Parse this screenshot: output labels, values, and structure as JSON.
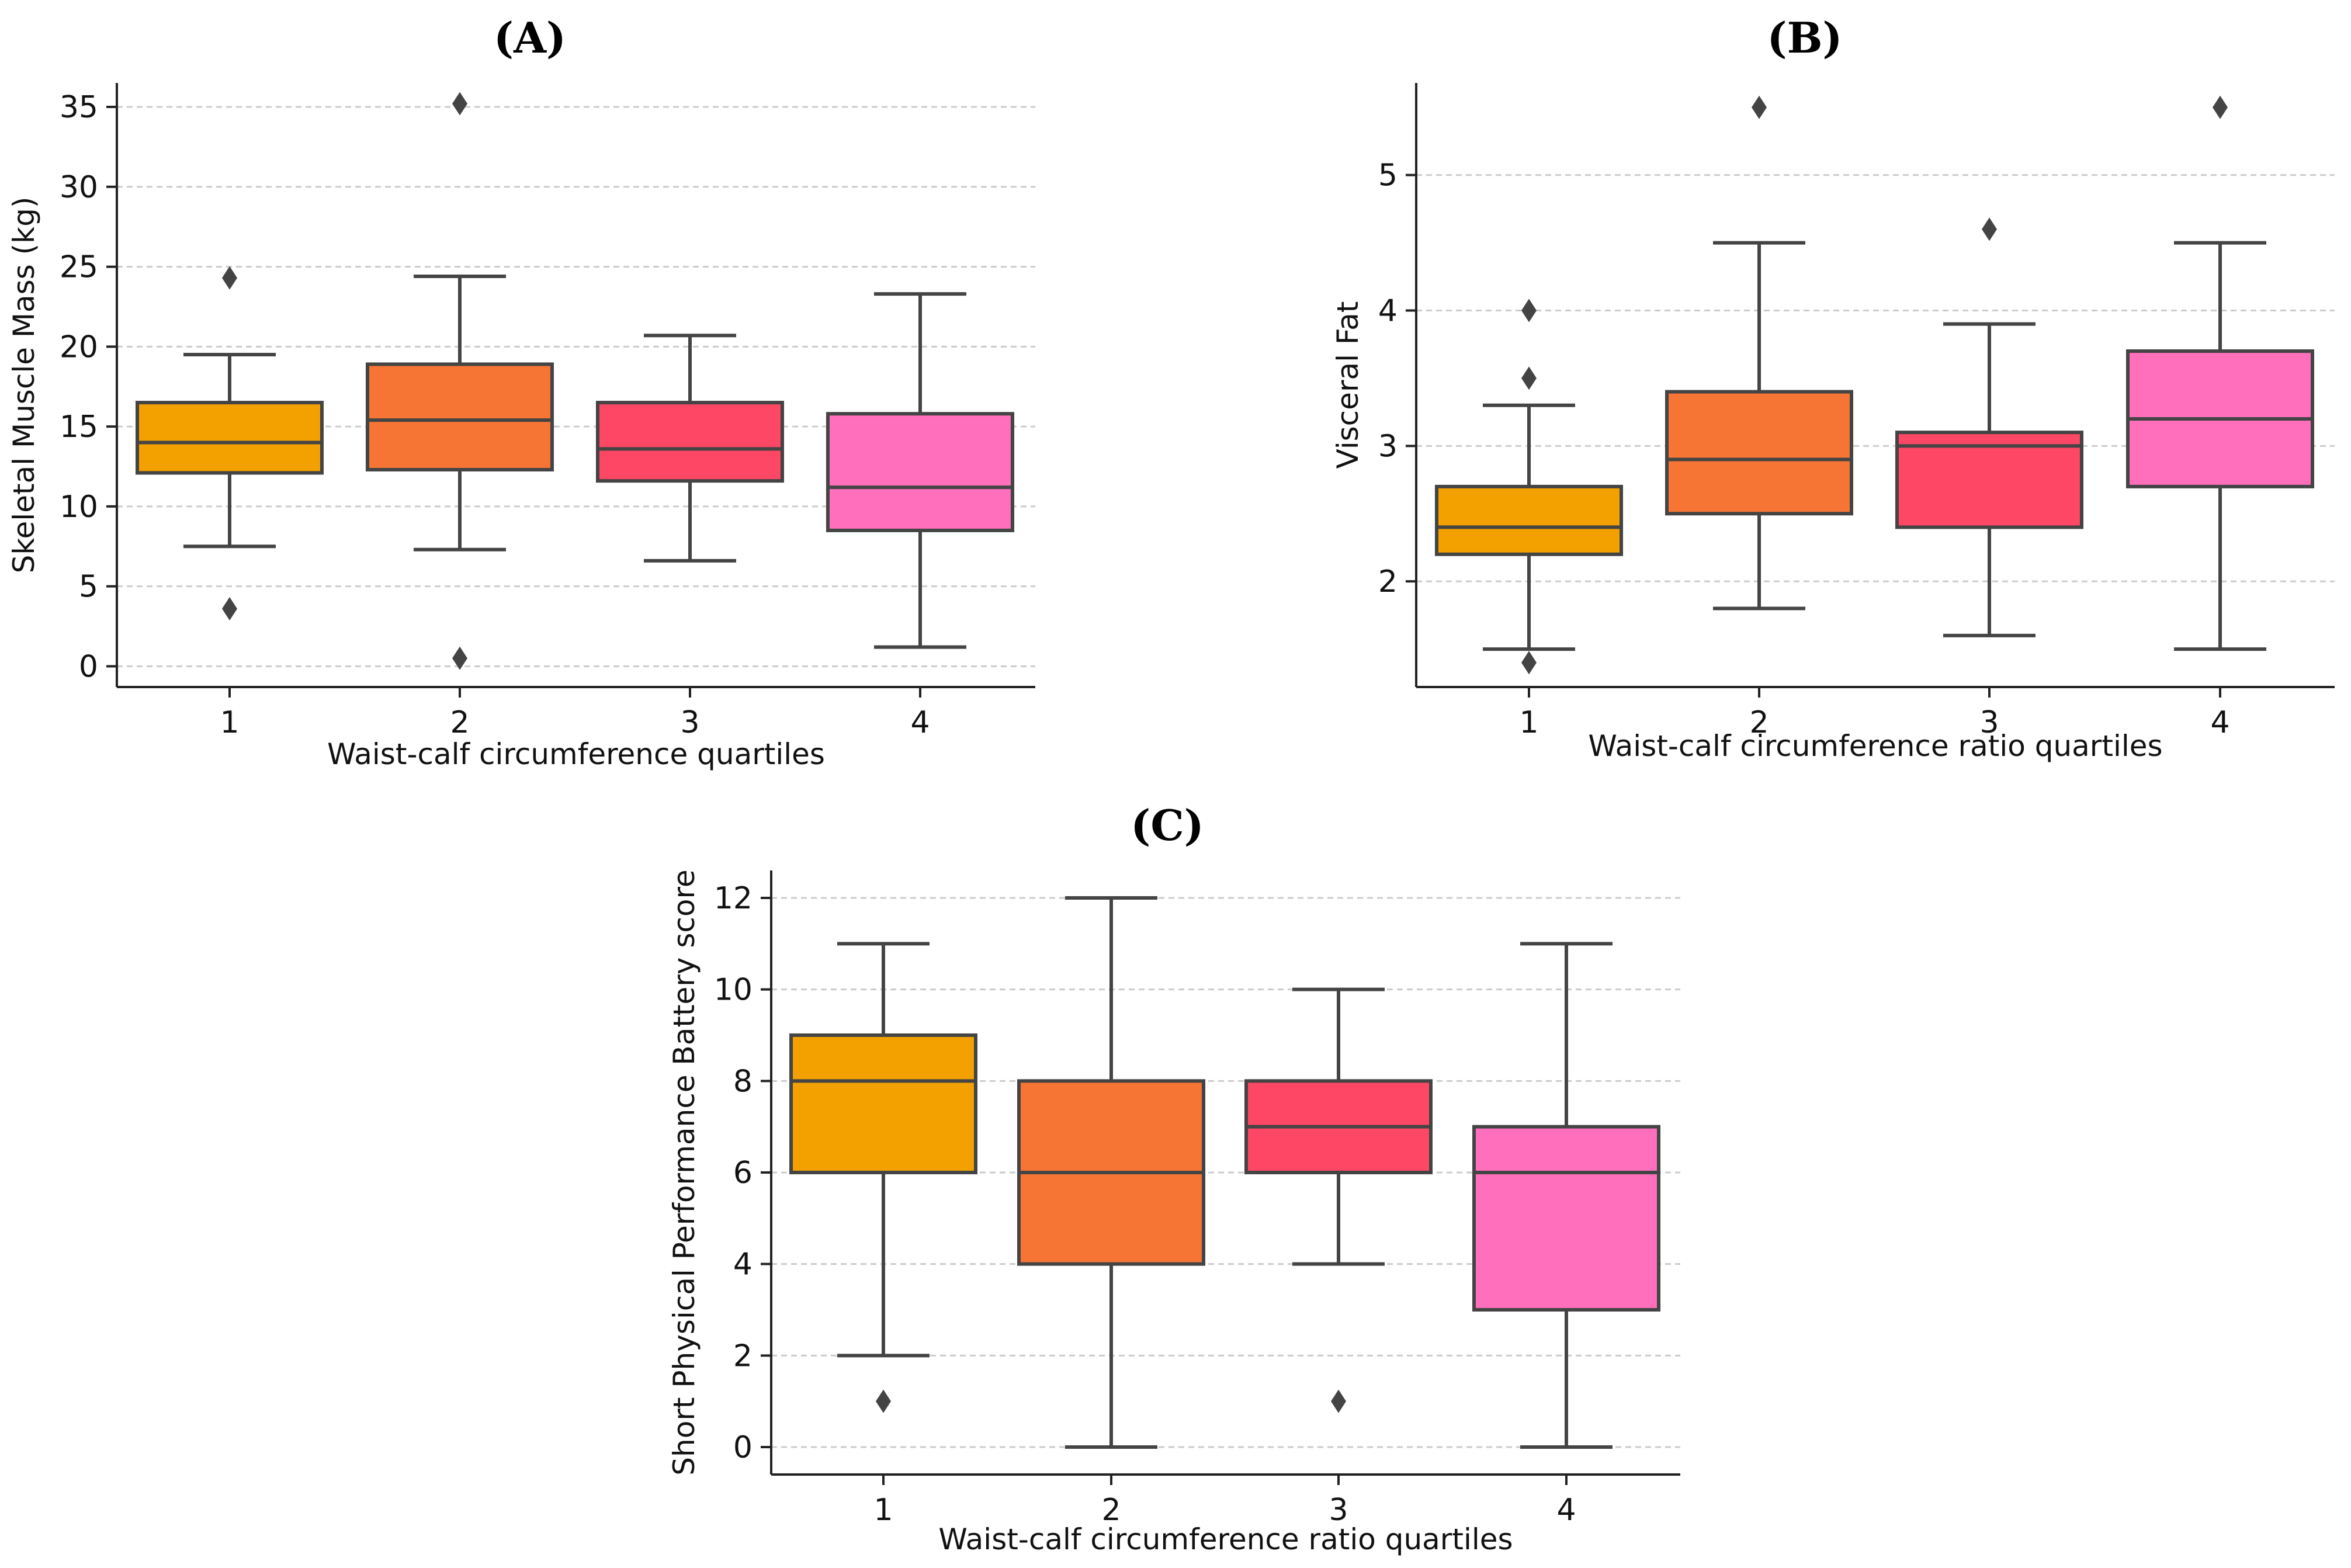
{
  "colors": {
    "q1": "#f2a100",
    "q2": "#f67535",
    "q3": "#fd4764",
    "q4": "#ff6fbc",
    "line": "#444444",
    "grid": "#cccccc"
  },
  "chart_data": [
    {
      "id": "A",
      "type": "box",
      "title": "(A)",
      "title_letter": "A",
      "xlabel": "Waist-calf circumference quartiles",
      "ylabel": "Skeletal Muscle Mass (kg)",
      "categories": [
        "1",
        "2",
        "3",
        "4"
      ],
      "ylim": [
        -1.3,
        36.5
      ],
      "yticks": [
        0,
        5,
        10,
        15,
        20,
        25,
        30,
        35
      ],
      "grid": true,
      "boxes": [
        {
          "category": "1",
          "whisker_low": 7.5,
          "q1": 12.1,
          "median": 14.0,
          "q3": 16.5,
          "whisker_high": 19.5,
          "outliers": [
            24.3,
            3.6
          ]
        },
        {
          "category": "2",
          "whisker_low": 7.3,
          "q1": 12.3,
          "median": 15.4,
          "q3": 18.9,
          "whisker_high": 24.4,
          "outliers": [
            35.2,
            0.5
          ]
        },
        {
          "category": "3",
          "whisker_low": 6.6,
          "q1": 11.6,
          "median": 13.6,
          "q3": 16.5,
          "whisker_high": 20.7,
          "outliers": []
        },
        {
          "category": "4",
          "whisker_low": 1.2,
          "q1": 8.5,
          "median": 11.2,
          "q3": 15.8,
          "whisker_high": 23.3,
          "outliers": []
        }
      ]
    },
    {
      "id": "B",
      "type": "box",
      "title": "(B)",
      "title_letter": "B",
      "xlabel": "Waist-calf circumference ratio quartiles",
      "ylabel": "Visceral Fat",
      "categories": [
        "1",
        "2",
        "3",
        "4"
      ],
      "ylim": [
        1.22,
        5.68
      ],
      "yticks": [
        2,
        3,
        4,
        5
      ],
      "grid": true,
      "boxes": [
        {
          "category": "1",
          "whisker_low": 1.5,
          "q1": 2.2,
          "median": 2.4,
          "q3": 2.7,
          "whisker_high": 3.3,
          "outliers": [
            4.0,
            3.5,
            1.4
          ]
        },
        {
          "category": "2",
          "whisker_low": 1.8,
          "q1": 2.5,
          "median": 2.9,
          "q3": 3.4,
          "whisker_high": 4.5,
          "outliers": [
            5.5
          ]
        },
        {
          "category": "3",
          "whisker_low": 1.6,
          "q1": 2.4,
          "median": 3.0,
          "q3": 3.1,
          "whisker_high": 3.9,
          "outliers": [
            4.6
          ]
        },
        {
          "category": "4",
          "whisker_low": 1.5,
          "q1": 2.7,
          "median": 3.2,
          "q3": 3.7,
          "whisker_high": 4.5,
          "outliers": [
            5.5
          ]
        }
      ]
    },
    {
      "id": "C",
      "type": "box",
      "title": "(C)",
      "title_letter": "C",
      "xlabel": "Waist-calf circumference ratio quartiles",
      "ylabel": "Short Physical Performance Battery score",
      "categories": [
        "1",
        "2",
        "3",
        "4"
      ],
      "ylim": [
        -0.6,
        12.6
      ],
      "yticks": [
        0,
        2,
        4,
        6,
        8,
        10,
        12
      ],
      "grid": true,
      "boxes": [
        {
          "category": "1",
          "whisker_low": 2,
          "q1": 6,
          "median": 8,
          "q3": 9,
          "whisker_high": 11,
          "outliers": [
            1
          ]
        },
        {
          "category": "2",
          "whisker_low": 0,
          "q1": 4,
          "median": 6,
          "q3": 8,
          "whisker_high": 12,
          "outliers": []
        },
        {
          "category": "3",
          "whisker_low": 4,
          "q1": 6,
          "median": 7,
          "q3": 8,
          "whisker_high": 10,
          "outliers": [
            1
          ]
        },
        {
          "category": "4",
          "whisker_low": 0,
          "q1": 3,
          "median": 6,
          "q3": 7,
          "whisker_high": 11,
          "outliers": []
        }
      ]
    }
  ]
}
